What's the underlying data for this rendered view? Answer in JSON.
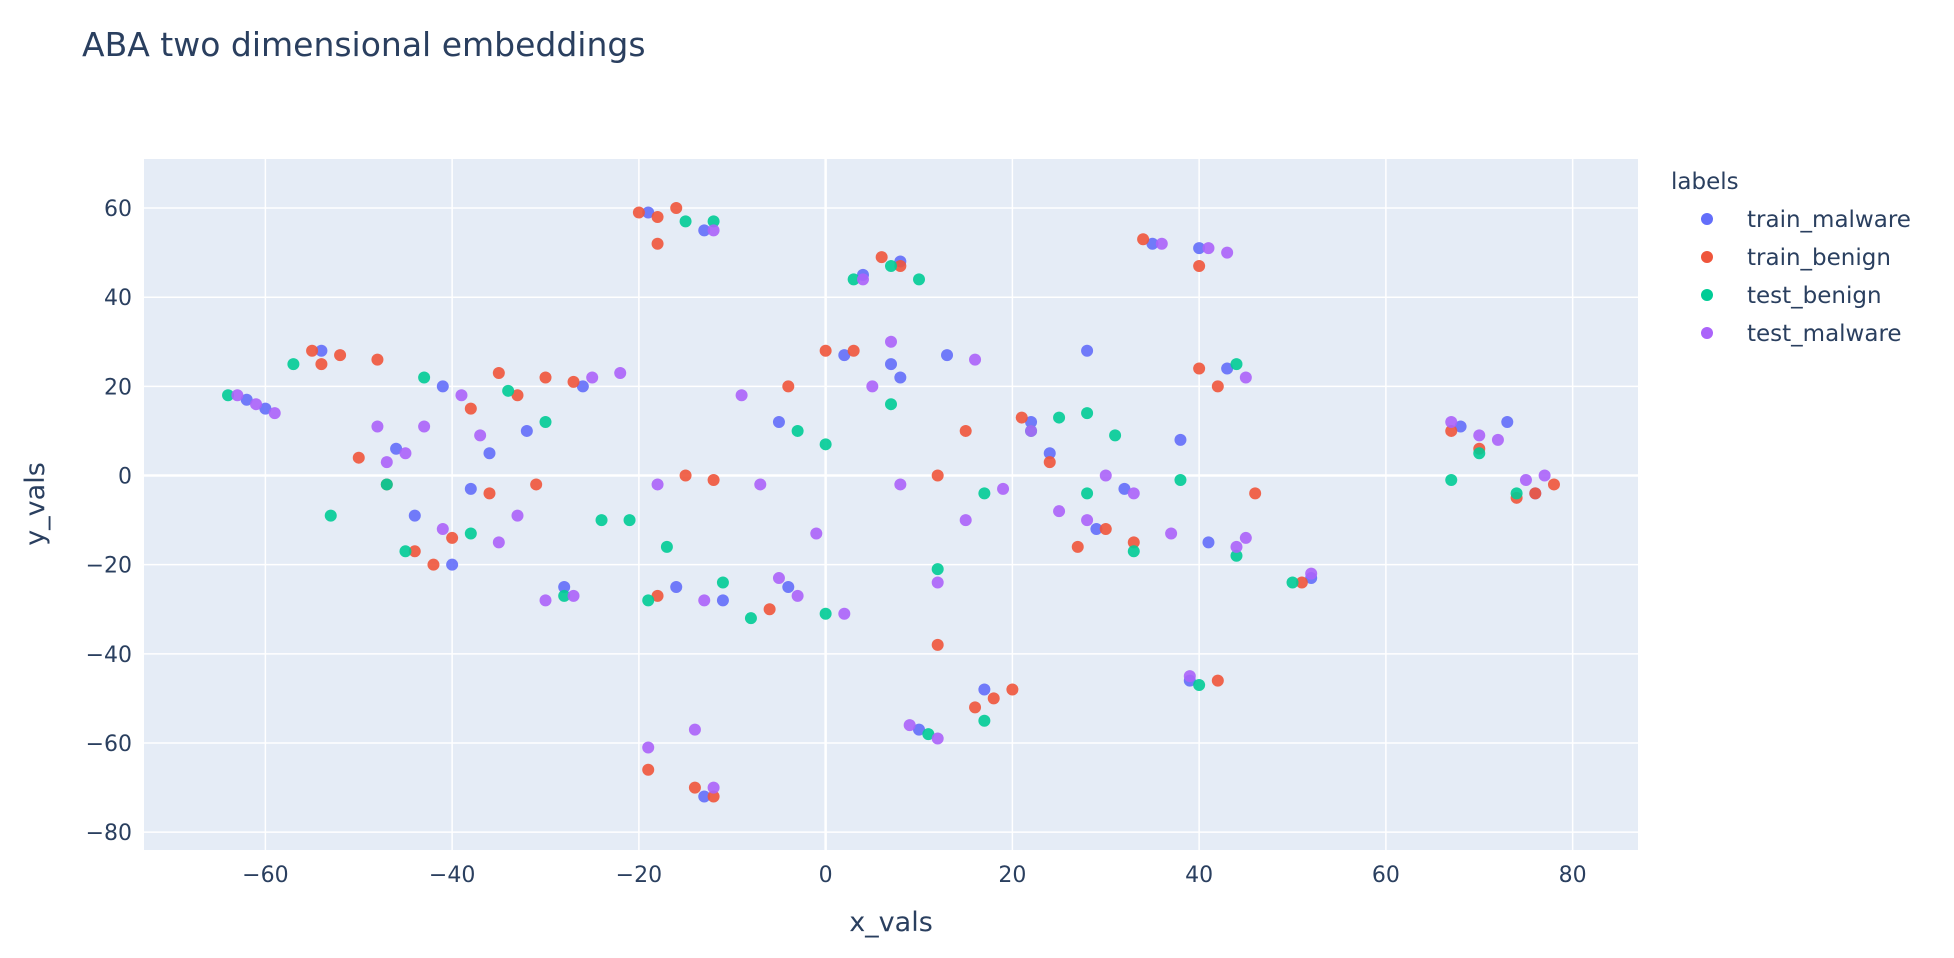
{
  "chart_data": {
    "type": "scatter",
    "title": "ABA two dimensional embeddings",
    "xlabel": "x_vals",
    "ylabel": "y_vals",
    "xlim": [
      -73,
      87
    ],
    "ylim": [
      -84,
      71
    ],
    "xticks": [
      -60,
      -40,
      -20,
      0,
      20,
      40,
      60,
      80
    ],
    "xtick_labels": [
      "−60",
      "−40",
      "−20",
      "0",
      "20",
      "40",
      "60",
      "80"
    ],
    "yticks": [
      -80,
      -60,
      -40,
      -20,
      0,
      20,
      40,
      60
    ],
    "ytick_labels": [
      "−80",
      "−60",
      "−40",
      "−20",
      "0",
      "20",
      "40",
      "60"
    ],
    "grid": true,
    "legend_title": "labels",
    "legend_position": "top-right",
    "series": [
      {
        "name": "train_malware",
        "color": "#636efa",
        "points": [
          [
            -62,
            17
          ],
          [
            -60,
            15
          ],
          [
            -54,
            28
          ],
          [
            -46,
            6
          ],
          [
            -44,
            -9
          ],
          [
            -41,
            20
          ],
          [
            -40,
            -20
          ],
          [
            -38,
            -3
          ],
          [
            -36,
            5
          ],
          [
            -32,
            10
          ],
          [
            -28,
            -25
          ],
          [
            -26,
            20
          ],
          [
            -19,
            59
          ],
          [
            -16,
            -25
          ],
          [
            -13,
            55
          ],
          [
            -13,
            -72
          ],
          [
            -11,
            -28
          ],
          [
            -5,
            12
          ],
          [
            -4,
            -25
          ],
          [
            2,
            27
          ],
          [
            4,
            45
          ],
          [
            7,
            25
          ],
          [
            8,
            48
          ],
          [
            8,
            22
          ],
          [
            10,
            -57
          ],
          [
            13,
            27
          ],
          [
            17,
            -48
          ],
          [
            22,
            12
          ],
          [
            24,
            5
          ],
          [
            28,
            28
          ],
          [
            29,
            -12
          ],
          [
            32,
            -3
          ],
          [
            35,
            52
          ],
          [
            38,
            8
          ],
          [
            39,
            -46
          ],
          [
            40,
            51
          ],
          [
            41,
            -15
          ],
          [
            43,
            24
          ],
          [
            52,
            -23
          ],
          [
            68,
            11
          ],
          [
            73,
            12
          ],
          [
            76,
            -4
          ]
        ]
      },
      {
        "name": "train_benign",
        "color": "#ef553b",
        "points": [
          [
            -55,
            28
          ],
          [
            -54,
            25
          ],
          [
            -52,
            27
          ],
          [
            -48,
            26
          ],
          [
            -50,
            4
          ],
          [
            -47,
            -2
          ],
          [
            -44,
            -17
          ],
          [
            -42,
            -20
          ],
          [
            -40,
            -14
          ],
          [
            -38,
            15
          ],
          [
            -36,
            -4
          ],
          [
            -35,
            23
          ],
          [
            -33,
            18
          ],
          [
            -31,
            -2
          ],
          [
            -30,
            22
          ],
          [
            -27,
            21
          ],
          [
            -20,
            59
          ],
          [
            -18,
            58
          ],
          [
            -16,
            60
          ],
          [
            -18,
            52
          ],
          [
            -19,
            -66
          ],
          [
            -18,
            -27
          ],
          [
            -15,
            0
          ],
          [
            -12,
            -1
          ],
          [
            -12,
            -72
          ],
          [
            -14,
            -70
          ],
          [
            -6,
            -30
          ],
          [
            -4,
            20
          ],
          [
            0,
            28
          ],
          [
            3,
            28
          ],
          [
            6,
            49
          ],
          [
            8,
            47
          ],
          [
            12,
            -38
          ],
          [
            12,
            0
          ],
          [
            15,
            10
          ],
          [
            16,
            -52
          ],
          [
            18,
            -50
          ],
          [
            20,
            -48
          ],
          [
            21,
            13
          ],
          [
            24,
            3
          ],
          [
            27,
            -16
          ],
          [
            30,
            -12
          ],
          [
            33,
            -15
          ],
          [
            34,
            53
          ],
          [
            40,
            47
          ],
          [
            40,
            24
          ],
          [
            42,
            -46
          ],
          [
            42,
            20
          ],
          [
            46,
            -4
          ],
          [
            51,
            -24
          ],
          [
            67,
            10
          ],
          [
            70,
            6
          ],
          [
            74,
            -5
          ],
          [
            76,
            -4
          ],
          [
            78,
            -2
          ]
        ]
      },
      {
        "name": "test_benign",
        "color": "#00cc96",
        "points": [
          [
            -64,
            18
          ],
          [
            -57,
            25
          ],
          [
            -53,
            -9
          ],
          [
            -47,
            -2
          ],
          [
            -45,
            -17
          ],
          [
            -43,
            22
          ],
          [
            -38,
            -13
          ],
          [
            -34,
            19
          ],
          [
            -30,
            12
          ],
          [
            -28,
            -27
          ],
          [
            -24,
            -10
          ],
          [
            -21,
            -10
          ],
          [
            -19,
            -28
          ],
          [
            -17,
            -16
          ],
          [
            -15,
            57
          ],
          [
            -12,
            57
          ],
          [
            -11,
            -24
          ],
          [
            -8,
            -32
          ],
          [
            -3,
            10
          ],
          [
            0,
            7
          ],
          [
            0,
            -31
          ],
          [
            3,
            44
          ],
          [
            7,
            16
          ],
          [
            7,
            47
          ],
          [
            10,
            44
          ],
          [
            12,
            -21
          ],
          [
            11,
            -58
          ],
          [
            17,
            -4
          ],
          [
            17,
            -55
          ],
          [
            22,
            10
          ],
          [
            25,
            13
          ],
          [
            28,
            14
          ],
          [
            28,
            -4
          ],
          [
            31,
            9
          ],
          [
            33,
            -17
          ],
          [
            38,
            -1
          ],
          [
            40,
            -47
          ],
          [
            44,
            25
          ],
          [
            44,
            -18
          ],
          [
            50,
            -24
          ],
          [
            67,
            -1
          ],
          [
            70,
            5
          ],
          [
            74,
            -4
          ]
        ]
      },
      {
        "name": "test_malware",
        "color": "#ab63fa",
        "points": [
          [
            -63,
            18
          ],
          [
            -61,
            16
          ],
          [
            -59,
            14
          ],
          [
            -48,
            11
          ],
          [
            -47,
            3
          ],
          [
            -45,
            5
          ],
          [
            -43,
            11
          ],
          [
            -41,
            -12
          ],
          [
            -39,
            18
          ],
          [
            -37,
            9
          ],
          [
            -35,
            -15
          ],
          [
            -33,
            -9
          ],
          [
            -30,
            -28
          ],
          [
            -27,
            -27
          ],
          [
            -25,
            22
          ],
          [
            -22,
            23
          ],
          [
            -18,
            -2
          ],
          [
            -19,
            -61
          ],
          [
            -14,
            -57
          ],
          [
            -12,
            55
          ],
          [
            -12,
            -70
          ],
          [
            -13,
            -28
          ],
          [
            -9,
            18
          ],
          [
            -7,
            -2
          ],
          [
            -5,
            -23
          ],
          [
            -3,
            -27
          ],
          [
            -1,
            -13
          ],
          [
            2,
            -31
          ],
          [
            4,
            44
          ],
          [
            5,
            20
          ],
          [
            7,
            30
          ],
          [
            8,
            -2
          ],
          [
            9,
            -56
          ],
          [
            12,
            -59
          ],
          [
            12,
            -24
          ],
          [
            15,
            -10
          ],
          [
            16,
            26
          ],
          [
            19,
            -3
          ],
          [
            22,
            10
          ],
          [
            25,
            -8
          ],
          [
            28,
            -10
          ],
          [
            30,
            0
          ],
          [
            33,
            -4
          ],
          [
            36,
            52
          ],
          [
            37,
            -13
          ],
          [
            39,
            -45
          ],
          [
            41,
            51
          ],
          [
            43,
            50
          ],
          [
            45,
            22
          ],
          [
            45,
            -14
          ],
          [
            44,
            -16
          ],
          [
            52,
            -22
          ],
          [
            67,
            12
          ],
          [
            70,
            9
          ],
          [
            72,
            8
          ],
          [
            75,
            -1
          ],
          [
            77,
            0
          ]
        ]
      }
    ]
  }
}
